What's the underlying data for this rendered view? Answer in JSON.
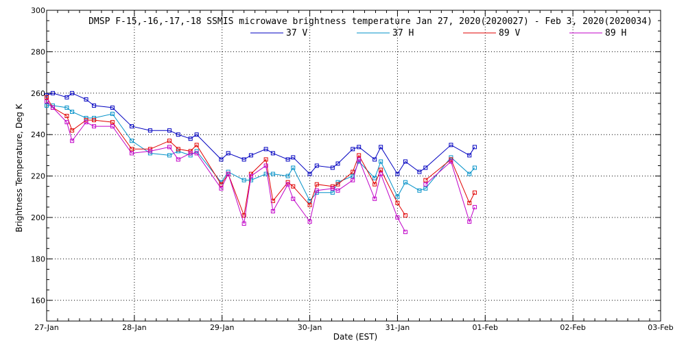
{
  "chart_data": {
    "type": "line",
    "title": "DMSP F-15,-16,-17,-18 SSMIS microwave brightness temperature Jan 27, 2020(2020027) - Feb  3, 2020(2020034)",
    "xlabel": "Date (EST)",
    "ylabel": "Brightness Temperature, Deg K",
    "ylim": [
      150,
      300
    ],
    "xlim": [
      0,
      7
    ],
    "grid": true,
    "legend_position": "top-center",
    "y_ticks": [
      "160",
      "180",
      "200",
      "220",
      "240",
      "260",
      "280",
      "300"
    ],
    "x_ticks": [
      {
        "value": 0,
        "label": "27-Jan"
      },
      {
        "value": 1,
        "label": "28-Jan"
      },
      {
        "value": 2,
        "label": "29-Jan"
      },
      {
        "value": 3,
        "label": "30-Jan"
      },
      {
        "value": 4,
        "label": "31-Jan"
      },
      {
        "value": 5,
        "label": "01-Feb"
      },
      {
        "value": 6,
        "label": "02-Feb"
      },
      {
        "value": 7,
        "label": "03-Feb"
      }
    ],
    "series": [
      {
        "name": "37 V",
        "color": "#0000c0",
        "points": [
          [
            0.0,
            259
          ],
          [
            0.07,
            260
          ],
          [
            0.23,
            258
          ],
          [
            0.29,
            260
          ],
          [
            0.45,
            257
          ],
          [
            0.54,
            254
          ],
          [
            0.75,
            253
          ],
          [
            0.97,
            244
          ],
          [
            1.18,
            242
          ],
          [
            1.4,
            242
          ],
          [
            1.5,
            240
          ],
          [
            1.64,
            238
          ],
          [
            1.71,
            240
          ],
          [
            1.99,
            228
          ],
          [
            2.07,
            231
          ],
          [
            2.25,
            228
          ],
          [
            2.33,
            230
          ],
          [
            2.5,
            233
          ],
          [
            2.58,
            231
          ],
          [
            2.75,
            228
          ],
          [
            2.81,
            229
          ],
          [
            3.0,
            221
          ],
          [
            3.08,
            225
          ],
          [
            3.26,
            224
          ],
          [
            3.32,
            226
          ],
          [
            3.49,
            233
          ],
          [
            3.56,
            234
          ],
          [
            3.74,
            228
          ],
          [
            3.81,
            234
          ],
          [
            4.0,
            221
          ],
          [
            4.09,
            227
          ],
          [
            4.25,
            222
          ],
          [
            4.32,
            224
          ],
          [
            4.61,
            235
          ],
          [
            4.82,
            230
          ],
          [
            4.88,
            234
          ]
        ]
      },
      {
        "name": "37 H",
        "color": "#0090c8",
        "points": [
          [
            0.0,
            254
          ],
          [
            0.07,
            254
          ],
          [
            0.23,
            253
          ],
          [
            0.29,
            251
          ],
          [
            0.45,
            248
          ],
          [
            0.54,
            248
          ],
          [
            0.75,
            250
          ],
          [
            0.97,
            237
          ],
          [
            1.18,
            231
          ],
          [
            1.4,
            230
          ],
          [
            1.5,
            232
          ],
          [
            1.64,
            230
          ],
          [
            1.71,
            232
          ],
          [
            1.99,
            217
          ],
          [
            2.07,
            222
          ],
          [
            2.25,
            218
          ],
          [
            2.33,
            218
          ],
          [
            2.5,
            221
          ],
          [
            2.58,
            221
          ],
          [
            2.75,
            220
          ],
          [
            2.81,
            224
          ],
          [
            3.0,
            208
          ],
          [
            3.08,
            212
          ],
          [
            3.26,
            212
          ],
          [
            3.32,
            217
          ],
          [
            3.49,
            220
          ],
          [
            3.56,
            227
          ],
          [
            3.74,
            219
          ],
          [
            3.81,
            227
          ],
          [
            4.0,
            210
          ],
          [
            4.09,
            217
          ],
          [
            4.25,
            213
          ],
          [
            4.32,
            214
          ],
          [
            4.61,
            229
          ],
          [
            4.82,
            221
          ],
          [
            4.88,
            224
          ]
        ]
      },
      {
        "name": "89 V",
        "color": "#e00000",
        "points": [
          [
            0.0,
            258
          ],
          [
            0.07,
            253
          ],
          [
            0.23,
            249
          ],
          [
            0.29,
            242
          ],
          [
            0.45,
            247
          ],
          [
            0.54,
            247
          ],
          [
            0.75,
            246
          ],
          [
            0.97,
            233
          ],
          [
            1.18,
            233
          ],
          [
            1.4,
            237
          ],
          [
            1.5,
            233
          ],
          [
            1.64,
            232
          ],
          [
            1.71,
            235
          ],
          [
            1.99,
            216
          ],
          [
            2.07,
            221
          ],
          [
            2.25,
            201
          ],
          [
            2.33,
            221
          ],
          [
            2.5,
            228
          ],
          [
            2.58,
            208
          ],
          [
            2.75,
            217
          ],
          [
            2.81,
            215
          ],
          [
            3.0,
            206
          ],
          [
            3.08,
            216
          ],
          [
            3.26,
            215
          ],
          [
            3.32,
            216
          ],
          [
            3.49,
            222
          ],
          [
            3.56,
            230
          ],
          [
            3.74,
            216
          ],
          [
            3.81,
            223
          ],
          [
            4.0,
            207
          ],
          [
            4.09,
            201
          ],
          [
            4.25,
            null
          ],
          [
            4.32,
            218
          ],
          [
            4.61,
            228
          ],
          [
            4.82,
            207
          ],
          [
            4.88,
            212
          ]
        ]
      },
      {
        "name": "89 H",
        "color": "#c000c8",
        "points": [
          [
            0.0,
            256
          ],
          [
            0.07,
            253
          ],
          [
            0.23,
            246
          ],
          [
            0.29,
            237
          ],
          [
            0.45,
            246
          ],
          [
            0.54,
            244
          ],
          [
            0.75,
            244
          ],
          [
            0.97,
            231
          ],
          [
            1.18,
            232
          ],
          [
            1.4,
            234
          ],
          [
            1.5,
            228
          ],
          [
            1.64,
            231
          ],
          [
            1.71,
            231
          ],
          [
            1.99,
            214
          ],
          [
            2.07,
            221
          ],
          [
            2.25,
            197
          ],
          [
            2.33,
            220
          ],
          [
            2.5,
            225
          ],
          [
            2.58,
            203
          ],
          [
            2.75,
            216
          ],
          [
            2.81,
            209
          ],
          [
            3.0,
            198
          ],
          [
            3.08,
            213
          ],
          [
            3.26,
            214
          ],
          [
            3.32,
            213
          ],
          [
            3.49,
            218
          ],
          [
            3.56,
            228
          ],
          [
            3.74,
            209
          ],
          [
            3.81,
            221
          ],
          [
            4.0,
            200
          ],
          [
            4.09,
            193
          ],
          [
            4.25,
            null
          ],
          [
            4.32,
            216
          ],
          [
            4.61,
            227
          ],
          [
            4.82,
            198
          ],
          [
            4.88,
            205
          ]
        ]
      }
    ]
  }
}
